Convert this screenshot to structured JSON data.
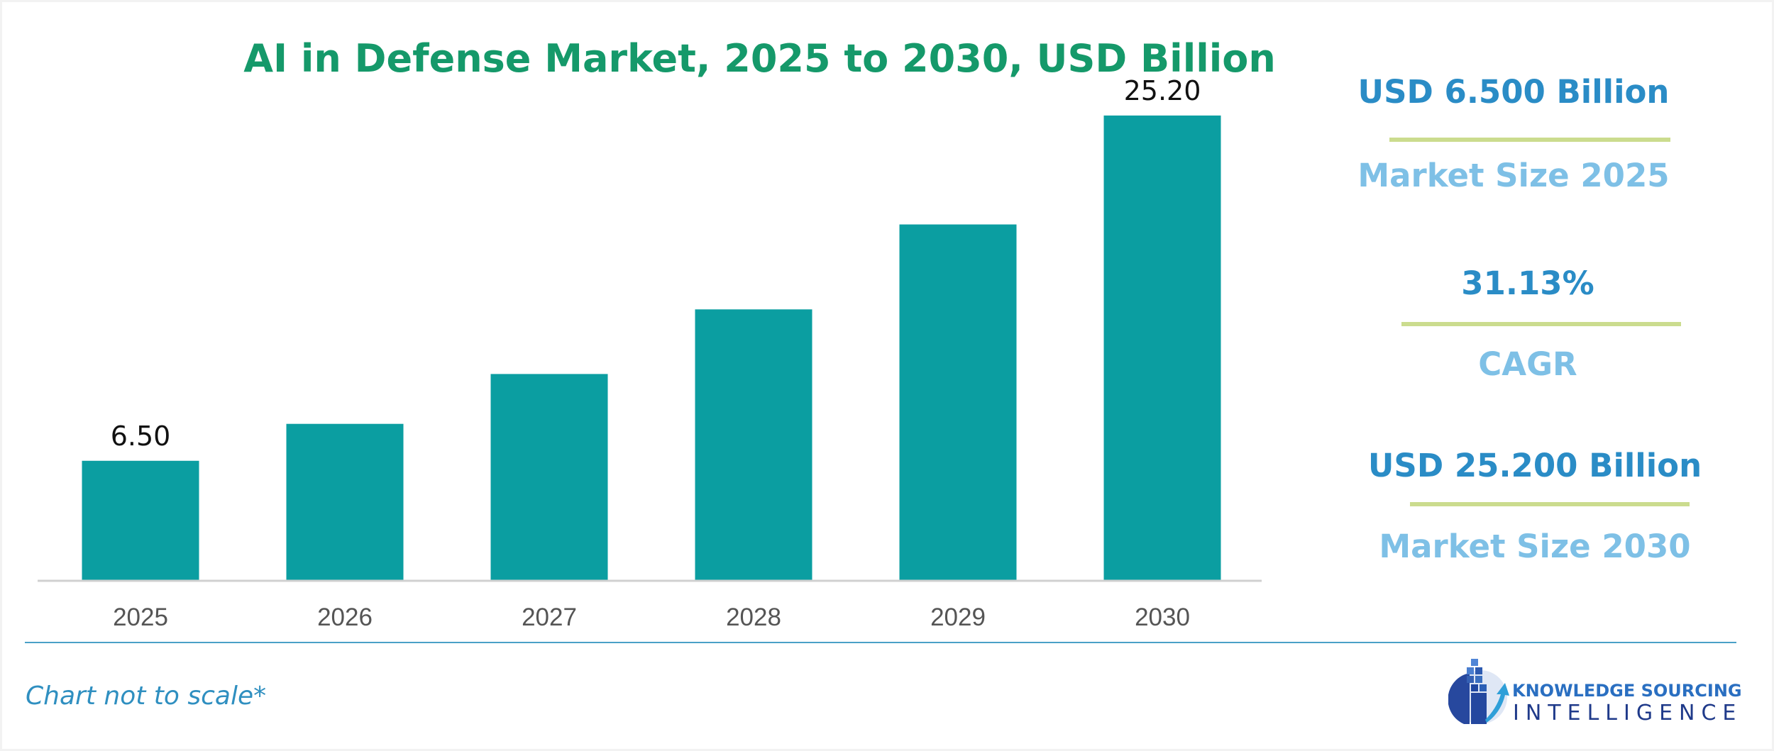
{
  "chart_data": {
    "type": "bar",
    "title": "AI in Defense Market, 2025 to 2030, USD Billion",
    "categories": [
      "2025",
      "2026",
      "2027",
      "2028",
      "2029",
      "2030"
    ],
    "values": [
      6.5,
      8.5,
      11.2,
      14.7,
      19.3,
      25.2
    ],
    "data_labels": [
      "6.50",
      "",
      "",
      "",
      "",
      "25.20"
    ],
    "xlabel": "",
    "ylabel": "",
    "ylim": [
      0,
      27.5
    ],
    "grid": false,
    "bar_color": "#0b9ea1"
  },
  "stats": [
    {
      "value": "USD 6.500 Billion",
      "label": "Market Size 2025"
    },
    {
      "value": "31.13%",
      "label": "CAGR"
    },
    {
      "value": "USD 25.200 Billion",
      "label": "Market Size 2030"
    }
  ],
  "footnote": "Chart not to scale*",
  "logo": {
    "line1": "KNOWLEDGE SOURCING",
    "line2": "INTELLIGENCE"
  },
  "colors": {
    "title": "#15996a",
    "bar": "#0b9ea1",
    "stat_value": "#2a8cc6",
    "stat_label": "#7ec0e6",
    "divider": "#cbdc8e",
    "footnote": "#2f8fc0"
  }
}
